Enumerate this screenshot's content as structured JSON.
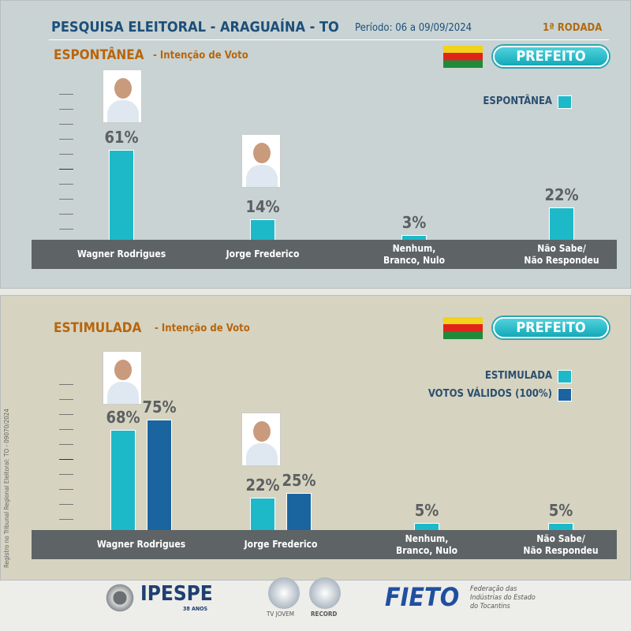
{
  "header": {
    "title": "PESQUISA ELEITORAL - ARAGUAÍNA - TO",
    "period": "Período: 06 a 09/09/2024",
    "round": "1ª RODADA"
  },
  "side_note": "Registro no Tribunal Regional Eleitoral: TO - 09070/2024",
  "chart_data": [
    {
      "type": "bar",
      "title": "ESPONTÂNEA",
      "subtitle": "- Intenção de Voto",
      "badge": "PREFEITO",
      "categories": [
        "Wagner Rodrigues",
        "Jorge Frederico",
        "Nenhum,\nBranco, Nulo",
        "Não Sabe/\nNão Respondeu"
      ],
      "ylim": [
        0,
        100
      ],
      "series": [
        {
          "name": "ESPONTÂNEA",
          "color": "#1db9c9",
          "values": [
            61,
            14,
            3,
            22
          ],
          "value_labels": [
            "61%",
            "14%",
            "3%",
            "22%"
          ]
        }
      ]
    },
    {
      "type": "bar",
      "title": "ESTIMULADA",
      "subtitle": "- Intenção de Voto",
      "badge": "PREFEITO",
      "categories": [
        "Wagner Rodrigues",
        "Jorge Frederico",
        "Nenhum,\nBranco, Nulo",
        "Não Sabe/\nNão Respondeu"
      ],
      "ylim": [
        0,
        100
      ],
      "series": [
        {
          "name": "ESTIMULADA",
          "color": "#1db9c9",
          "values": [
            68,
            22,
            5,
            5
          ],
          "value_labels": [
            "68%",
            "22%",
            "5%",
            "5%"
          ]
        },
        {
          "name": "VOTOS VÁLIDOS (100%)",
          "color": "#1a64a0",
          "values": [
            75,
            25,
            null,
            null
          ],
          "value_labels": [
            "75%",
            "25%",
            null,
            null
          ]
        }
      ]
    }
  ],
  "footer": {
    "ipespe": "IPESPE",
    "ipespe_years": "38 ANOS",
    "tv1": "TV JOVEM",
    "tv2": "RECORD",
    "fieto": "FIETO",
    "fieto_desc": "Federação das\nIndústrias do Estado\ndo Tocantins"
  }
}
